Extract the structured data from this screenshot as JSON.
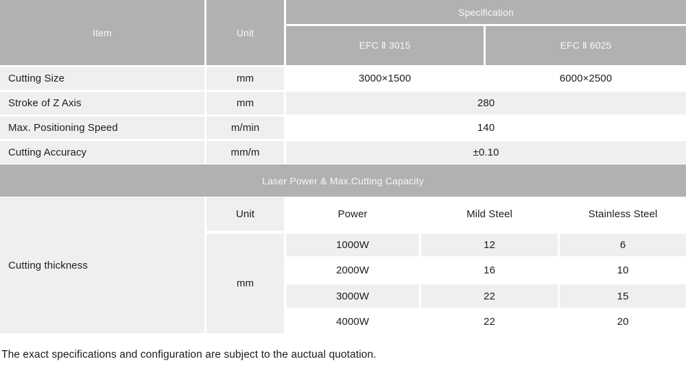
{
  "colors": {
    "header_gray": "#b1b1b1",
    "cell_light_gray": "#efefef",
    "cell_white": "#ffffff",
    "text_dark": "#1c1c1c",
    "text_on_gray": "#f7f7f7"
  },
  "top_table": {
    "headers": {
      "item": "Item",
      "unit": "Unit",
      "specification": "Specification",
      "model_1": "EFC Ⅱ 3015",
      "model_2": "EFC Ⅱ 6025"
    },
    "rows": [
      {
        "item": "Cutting Size",
        "unit": "mm",
        "value_1": "3000×1500",
        "value_2": "6000×2500"
      },
      {
        "item": "Stroke of Z Axis",
        "unit": "mm",
        "value": "280"
      },
      {
        "item": "Max. Positioning Speed",
        "unit": "m/min",
        "value": "140"
      },
      {
        "item": "Cutting Accuracy",
        "unit": "mm/m",
        "value": "±0.10"
      }
    ]
  },
  "section_band": {
    "title": "Laser Power & Max.Cutting Capacity"
  },
  "bottom_table": {
    "headers": {
      "unit": "Unit",
      "power": "Power",
      "mild_steel": "Mild Steel",
      "stainless_steel": "Stainless Steel"
    },
    "item": "Cutting thickness",
    "unit": "mm",
    "rows": [
      {
        "power": "1000W",
        "mild_steel": "12",
        "stainless_steel": "6"
      },
      {
        "power": "2000W",
        "mild_steel": "16",
        "stainless_steel": "10"
      },
      {
        "power": "3000W",
        "mild_steel": "22",
        "stainless_steel": "15"
      },
      {
        "power": "4000W",
        "mild_steel": "22",
        "stainless_steel": "20"
      }
    ]
  },
  "footer": {
    "note": "The exact specifications and configuration are subject to the auctual quotation."
  }
}
